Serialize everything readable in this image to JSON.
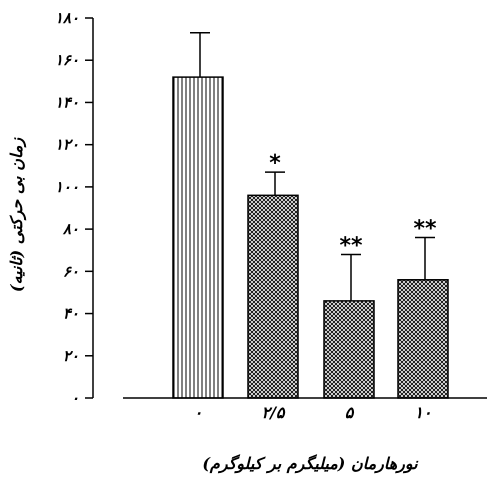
{
  "chart_data": {
    "type": "bar",
    "categories": [
      "۰",
      "۲/۵",
      "۵",
      "۱۰"
    ],
    "values": [
      152,
      96,
      46,
      56
    ],
    "errors": [
      21,
      11,
      22,
      20
    ],
    "significance": [
      "",
      "*",
      "**",
      "**"
    ],
    "bar_patterns": [
      "vertical-lines",
      "crosshatch",
      "crosshatch",
      "crosshatch"
    ],
    "ylim": [
      0,
      180
    ],
    "yticks": [
      0,
      20,
      40,
      60,
      80,
      100,
      120,
      140,
      160,
      180
    ],
    "ytick_labels": [
      "۰",
      "۲۰",
      "۴۰",
      "۶۰",
      "۸۰",
      "۱۰۰",
      "۱۲۰",
      "۱۴۰",
      "۱۶۰",
      "۱۸۰"
    ],
    "xlabel": "نورهارمان (میلیگرم بر کیلوگرم)",
    "ylabel": "زمان بی حرکتی (ثانیه)",
    "grid": false,
    "legend": "none"
  }
}
